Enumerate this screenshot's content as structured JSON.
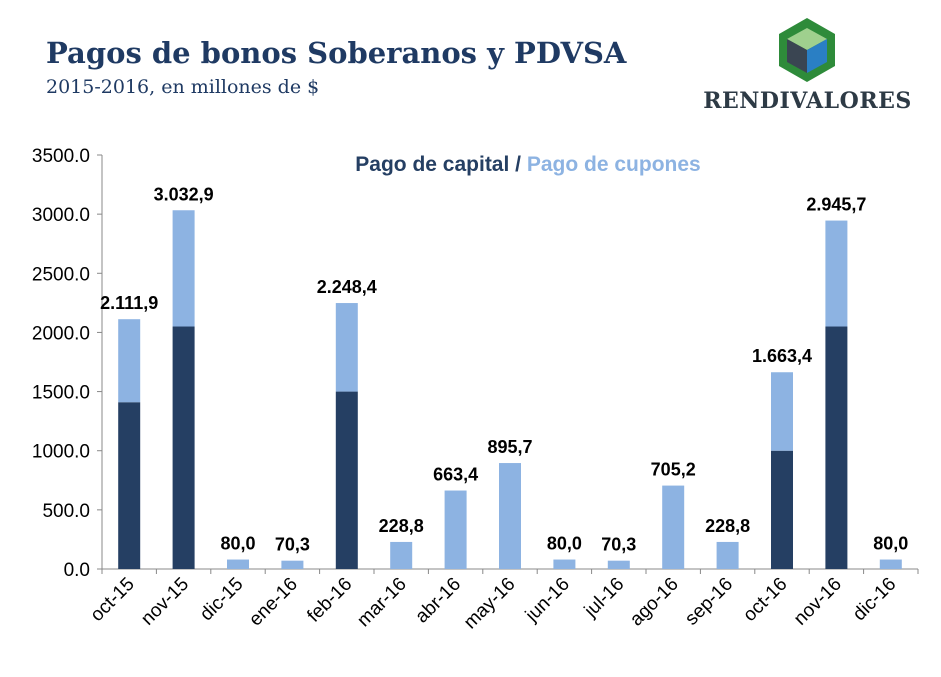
{
  "header": {
    "title": "Pagos de bonos Soberanos y PDVSA",
    "subtitle": "2015-2016,  en millones de $"
  },
  "logo": {
    "text": "RENDIVALORES"
  },
  "colors": {
    "capital": "#253f63",
    "cupones": "#8db3e2",
    "title": "#1f3a63"
  },
  "chart_data": {
    "type": "bar",
    "stacked": true,
    "legend_title": {
      "part1": "Pago de capital",
      "sep": " / ",
      "part2": "Pago de cupones"
    },
    "legend_placement": "top-center",
    "categories": [
      "oct-15",
      "nov-15",
      "dic-15",
      "ene-16",
      "feb-16",
      "mar-16",
      "abr-16",
      "may-16",
      "jun-16",
      "jul-16",
      "ago-16",
      "sep-16",
      "oct-16",
      "nov-16",
      "dic-16"
    ],
    "series": [
      {
        "name": "Pago de capital",
        "color": "#253f63",
        "values": [
          1410,
          2050,
          0,
          0,
          1500,
          0,
          0,
          0,
          0,
          0,
          0,
          0,
          1000,
          2050,
          0
        ]
      },
      {
        "name": "Pago de cupones",
        "color": "#8db3e2",
        "values": [
          701.9,
          982.9,
          80,
          70.3,
          748.4,
          228.8,
          663.4,
          895.7,
          80,
          70.3,
          705.2,
          228.8,
          663.4,
          895.7,
          80
        ]
      }
    ],
    "totals_labels": [
      "2.111,9",
      "3.032,9",
      "80,0",
      "70,3",
      "2.248,4",
      "228,8",
      "663,4",
      "895,7",
      "80,0",
      "70,3",
      "705,2",
      "228,8",
      "1.663,4",
      "2.945,7",
      "80,0"
    ],
    "totals": [
      2111.9,
      3032.9,
      80,
      70.3,
      2248.4,
      228.8,
      663.4,
      895.7,
      80,
      70.3,
      705.2,
      228.8,
      1663.4,
      2945.7,
      80
    ],
    "yticks": [
      "0.0",
      "500.0",
      "1000.0",
      "1500.0",
      "2000.0",
      "2500.0",
      "3000.0",
      "3500.0"
    ],
    "ylim": [
      0,
      3500
    ],
    "grid": false
  }
}
